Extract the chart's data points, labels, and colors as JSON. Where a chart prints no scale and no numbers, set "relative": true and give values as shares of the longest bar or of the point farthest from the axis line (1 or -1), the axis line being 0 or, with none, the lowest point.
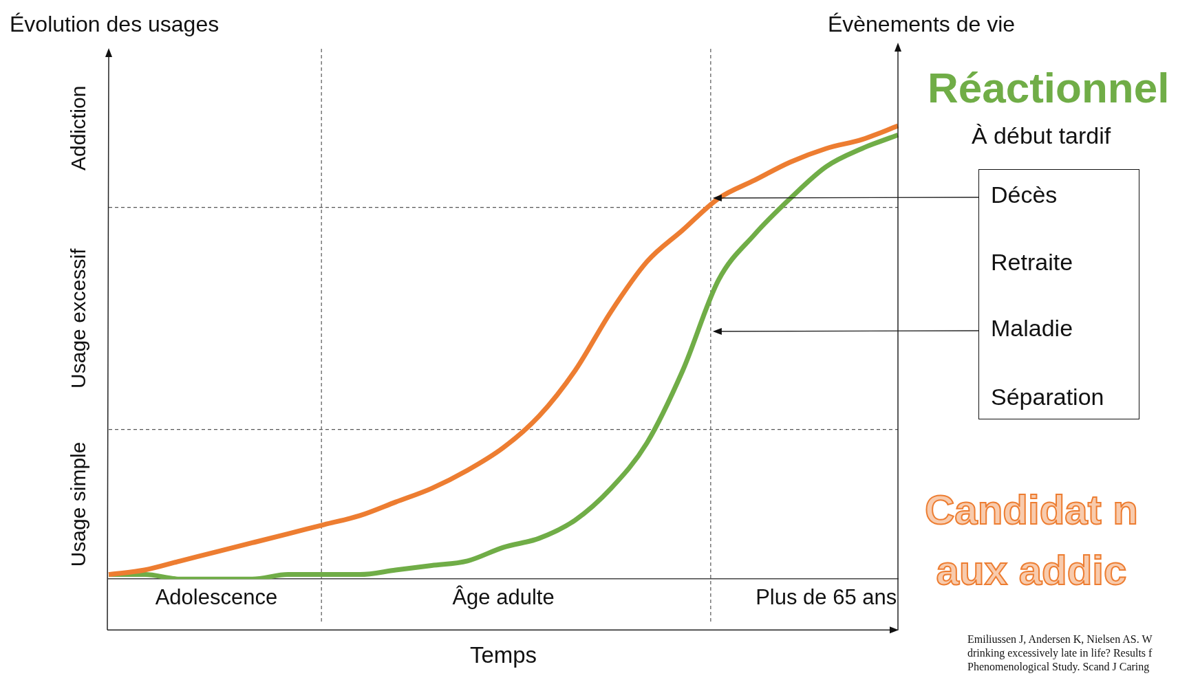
{
  "chart_data": {
    "type": "line",
    "relative": true,
    "ylabel": "Évolution des usages",
    "y2label": "Évènements de vie",
    "xlabel": "Temps",
    "categories": [
      null,
      null,
      null,
      "Adolescence",
      null,
      null,
      null,
      null,
      null,
      null,
      null,
      "Âge adulte",
      null,
      null,
      null,
      null,
      null,
      null,
      null,
      null,
      "Plus de 65 ans",
      null,
      null
    ],
    "series": [
      {
        "color": "#ed7d31",
        "values": [
          0.01,
          0.02,
          0.04,
          0.06,
          0.08,
          0.1,
          0.12,
          0.14,
          0.17,
          0.2,
          0.24,
          0.29,
          0.36,
          0.46,
          0.59,
          0.7,
          0.77,
          0.84,
          0.88,
          0.92,
          0.95,
          0.97,
          1.0
        ]
      },
      {
        "color": "#70ad47",
        "values": [
          0.01,
          0.01,
          0.0,
          0.0,
          0.0,
          0.01,
          0.01,
          0.01,
          0.02,
          0.03,
          0.04,
          0.07,
          0.09,
          0.13,
          0.2,
          0.3,
          0.46,
          0.66,
          0.76,
          0.84,
          0.91,
          0.95,
          0.98
        ]
      }
    ],
    "ref_lines": [
      {
        "axis": "y",
        "value": 0.33,
        "line_style": "dashed"
      },
      {
        "axis": "y",
        "value": 0.82,
        "line_style": "dashed"
      }
    ],
    "annotations": [
      "Usage simple",
      "Usage excessif",
      "Addiction",
      "Réactionnel",
      "À début tardif",
      "Décès",
      "Retraite",
      "Maladie",
      "Séparation",
      "Candidat n\naux addic",
      "Emiliussen J, Andersen K, Nielsen AS. W\ndrinking excessively late in life? Results f\nPhenomenological Study. Scand J Caring"
    ],
    "marker": "none",
    "line_style": "solid",
    "legend": false,
    "grid": "x"
  }
}
